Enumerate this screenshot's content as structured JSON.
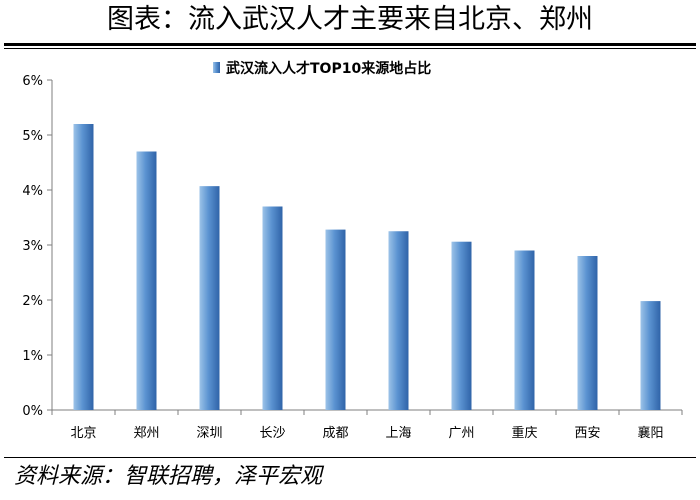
{
  "header": {
    "title": "图表：流入武汉人才主要来自北京、郑州"
  },
  "footer": {
    "source": "资料来源：智联招聘，泽平宏观"
  },
  "chart_data": {
    "type": "bar",
    "legend": "武汉流入人才TOP10来源地占比",
    "legend_position": "top",
    "categories": [
      "北京",
      "郑州",
      "深圳",
      "长沙",
      "成都",
      "上海",
      "广州",
      "重庆",
      "西安",
      "襄阳"
    ],
    "series": [
      {
        "name": "武汉流入人才TOP10来源地占比",
        "values": [
          5.2,
          4.7,
          4.07,
          3.7,
          3.28,
          3.25,
          3.06,
          2.9,
          2.8,
          1.98
        ]
      }
    ],
    "ylim": [
      0,
      6
    ],
    "yticks": [
      "0%",
      "1%",
      "2%",
      "3%",
      "4%",
      "5%",
      "6%"
    ],
    "y_unit": "%",
    "grid": false,
    "colors": {
      "bar_light": "#9cc3e8",
      "bar_mid": "#5b93d1",
      "bar_dark": "#2f63a8",
      "axis": "#7f7f7f"
    }
  }
}
